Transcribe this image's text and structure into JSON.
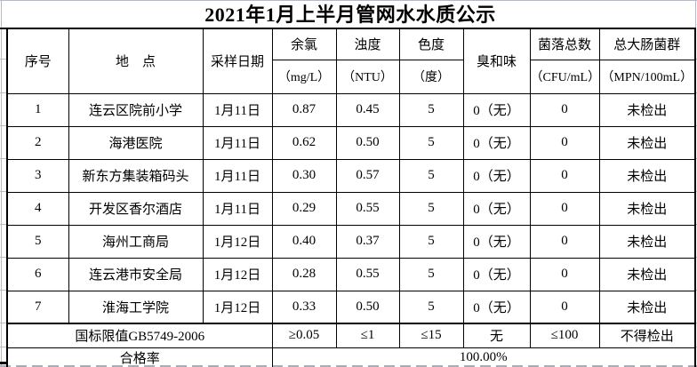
{
  "page": {
    "title": "2021年1月上半月管网水水质公示"
  },
  "table": {
    "header": {
      "serial": "序号",
      "location": "地　点",
      "sample_date": "采样日期",
      "residual_chlorine": "余氯",
      "residual_chlorine_unit": "（mg/L）",
      "turbidity": "浊度",
      "turbidity_unit": "（NTU）",
      "chroma": "色度",
      "chroma_unit": "（度）",
      "odor_taste": "臭和味",
      "colony_count": "菌落总数",
      "colony_count_unit": "（CFU/mL）",
      "total_coliform": "总大肠菌群",
      "total_coliform_unit": "（MPN/100mL）"
    },
    "rows": [
      [
        "1",
        "连云区院前小学",
        "1月11日",
        "0.87",
        "0.45",
        "5",
        "0（无）",
        "0",
        "未检出"
      ],
      [
        "2",
        "海港医院",
        "1月11日",
        "0.62",
        "0.50",
        "5",
        "0（无）",
        "0",
        "未检出"
      ],
      [
        "3",
        "新东方集装箱码头",
        "1月11日",
        "0.30",
        "0.57",
        "5",
        "0（无）",
        "0",
        "未检出"
      ],
      [
        "4",
        "开发区香尔酒店",
        "1月11日",
        "0.29",
        "0.55",
        "5",
        "0（无）",
        "0",
        "未检出"
      ],
      [
        "5",
        "海州工商局",
        "1月12日",
        "0.40",
        "0.37",
        "5",
        "0（无）",
        "0",
        "未检出"
      ],
      [
        "6",
        "连云港市安全局",
        "1月12日",
        "0.28",
        "0.55",
        "5",
        "0（无）",
        "0",
        "未检出"
      ],
      [
        "7",
        "淮海工学院",
        "1月12日",
        "0.33",
        "0.50",
        "5",
        "0（无）",
        "0",
        "未检出"
      ]
    ],
    "limit_row": {
      "label": "国标限值GB5749-2006",
      "values": [
        "≥0.05",
        "≤1",
        "≤15",
        "无",
        "≤100",
        "不得检出"
      ]
    },
    "pass_rate_row": {
      "label": "合格率",
      "value": "100.00%"
    }
  }
}
